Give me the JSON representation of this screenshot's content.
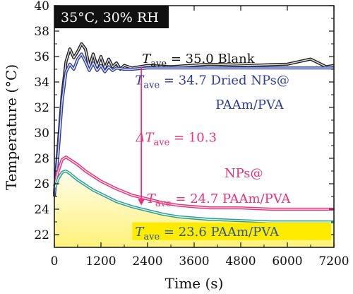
{
  "chart_data": {
    "type": "line",
    "condition_badge": "35°C, 30% RH",
    "xlabel": "Time (s)",
    "ylabel": "Temperature (°C)",
    "xlim": [
      0,
      7200
    ],
    "ylim": [
      21,
      40
    ],
    "x_ticks": [
      0,
      1200,
      2400,
      3600,
      4800,
      6000,
      7200
    ],
    "y_ticks": [
      22,
      24,
      26,
      28,
      30,
      32,
      34,
      36,
      38,
      40
    ],
    "colors": {
      "blank": "#222222",
      "dried": "#2e3f9e",
      "nps": "#e8337a",
      "paam": "#2a9d8f",
      "arrow": "#e8337a",
      "badge_bg": "#111111",
      "fill_top": "#fffbe6",
      "fill_bottom": "#fff27a",
      "box": "#ffeb00"
    },
    "series": [
      {
        "key": "blank",
        "color": "#222222",
        "x": [
          0,
          100,
          200,
          300,
          400,
          500,
          600,
          700,
          800,
          900,
          1000,
          1100,
          1200,
          1300,
          1400,
          1500,
          1600,
          1700,
          1800,
          2000,
          2400,
          3000,
          4000,
          5000,
          6000,
          6600,
          7000,
          7200
        ],
        "y": [
          25.2,
          29,
          33,
          35.6,
          36.6,
          35.9,
          36.4,
          37,
          36.6,
          35.2,
          36.2,
          35.2,
          36.0,
          35.1,
          35.8,
          35.2,
          35.5,
          35.0,
          35.3,
          35.1,
          35.3,
          35.2,
          35.4,
          35.3,
          35.4,
          35.8,
          35.2,
          35.3
        ]
      },
      {
        "key": "dried",
        "color": "#2e3f9e",
        "x": [
          0,
          100,
          200,
          300,
          400,
          500,
          600,
          700,
          800,
          900,
          1000,
          1100,
          1200,
          1300,
          1400,
          1500,
          1600,
          1800,
          2000,
          2400,
          3000,
          4000,
          5000,
          6000,
          7200
        ],
        "y": [
          25.0,
          28.5,
          32.5,
          34.8,
          35.4,
          35.0,
          35.8,
          36.2,
          35.6,
          34.9,
          35.5,
          34.9,
          35.3,
          34.8,
          35.2,
          34.9,
          35.1,
          35.0,
          35.0,
          35.1,
          35.1,
          35.1,
          35.1,
          35.1,
          35.1
        ]
      },
      {
        "key": "nps",
        "color": "#e8337a",
        "x": [
          0,
          100,
          200,
          300,
          400,
          600,
          800,
          1000,
          1200,
          1600,
          2000,
          2400,
          2800,
          3200,
          3600,
          4000,
          4800,
          5600,
          6400,
          7200
        ],
        "y": [
          25.8,
          27.0,
          27.9,
          28.1,
          27.9,
          27.5,
          27.0,
          26.6,
          26.2,
          25.6,
          25.1,
          24.8,
          24.5,
          24.3,
          24.2,
          24.1,
          24.1,
          24.0,
          24.0,
          24.0
        ]
      },
      {
        "key": "paam",
        "color": "#2a9d8f",
        "x": [
          0,
          100,
          200,
          300,
          400,
          600,
          800,
          1000,
          1200,
          1600,
          2000,
          2400,
          2800,
          3200,
          3600,
          4000,
          4800,
          5600,
          6400,
          7200
        ],
        "y": [
          25.6,
          26.4,
          26.9,
          27.0,
          26.8,
          26.3,
          25.9,
          25.5,
          25.2,
          24.6,
          24.2,
          23.9,
          23.6,
          23.4,
          23.3,
          23.2,
          23.1,
          23.0,
          23.0,
          23.0
        ]
      }
    ],
    "arrow": {
      "x": 2240,
      "y_from": 35.2,
      "y_to": 24.3
    },
    "annotations": [
      {
        "sym": "T",
        "sub": "ave",
        "rest": " = 35.0",
        "label": "Blank",
        "color": "#111111",
        "x": 2260,
        "y": 35.5
      },
      {
        "sym": "T",
        "sub": "ave",
        "rest": " = 34.7",
        "label": "Dried NPs@",
        "color": "#2e3f9e",
        "x": 2080,
        "y": 33.8
      },
      {
        "sym": "",
        "sub": "",
        "rest": "",
        "label": "PAAm/PVA",
        "color": "#2e3f9e",
        "x": 4150,
        "y": 31.9
      },
      {
        "sym": "ΔT",
        "sub": "ave",
        "rest": " = 10.3",
        "label": "",
        "color": "#e8337a",
        "x": 2100,
        "y": 29.3
      },
      {
        "sym": "",
        "sub": "",
        "rest": "",
        "label": "NPs@",
        "color": "#e8337a",
        "x": 4380,
        "y": 26.5
      },
      {
        "sym": "T",
        "sub": "ave",
        "rest": " = 24.7",
        "label": "PAAm/PVA",
        "color": "#e8337a",
        "x": 2380,
        "y": 24.5
      },
      {
        "sym": "T",
        "sub": "ave",
        "rest": " = 23.6",
        "label": "PAAm/PVA",
        "color": "#2a5a9e",
        "x": 2080,
        "y": 21.9
      }
    ]
  }
}
